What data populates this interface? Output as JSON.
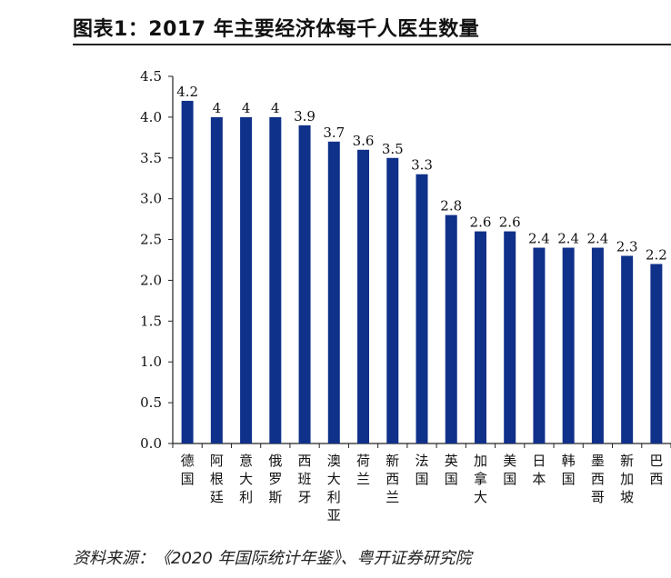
{
  "header": {
    "title": "图表1：2017 年主要经济体每千人医生数量"
  },
  "footer": {
    "source": "资料来源：《2020 年国际统计年鉴》、粤开证券研究院"
  },
  "colors": {
    "bar": "#10318a",
    "axis": "#222222"
  },
  "chart_data": {
    "type": "bar",
    "title": "图表1：2017 年主要经济体每千人医生数量",
    "xlabel": "",
    "ylabel": "",
    "ylim": [
      0,
      4.5
    ],
    "yticks": [
      "0.0",
      "0.5",
      "1.0",
      "1.5",
      "2.0",
      "2.5",
      "3.0",
      "3.5",
      "4.0",
      "4.5"
    ],
    "grid": false,
    "categories": [
      "德国",
      "阿根廷",
      "意大利",
      "俄罗斯",
      "西班牙",
      "澳大利亚",
      "荷兰",
      "新西兰",
      "法国",
      "英国",
      "加拿大",
      "美国",
      "日本",
      "韩国",
      "墨西哥",
      "新加坡",
      "巴西"
    ],
    "values": [
      4.2,
      4,
      4,
      4,
      3.9,
      3.7,
      3.6,
      3.5,
      3.3,
      2.8,
      2.6,
      2.6,
      2.4,
      2.4,
      2.4,
      2.3,
      2.2
    ],
    "data_labels": [
      "4.2",
      "4",
      "4",
      "4",
      "3.9",
      "3.7",
      "3.6",
      "3.5",
      "3.3",
      "2.8",
      "2.6",
      "2.6",
      "2.4",
      "2.4",
      "2.4",
      "2.3",
      "2.2"
    ]
  }
}
